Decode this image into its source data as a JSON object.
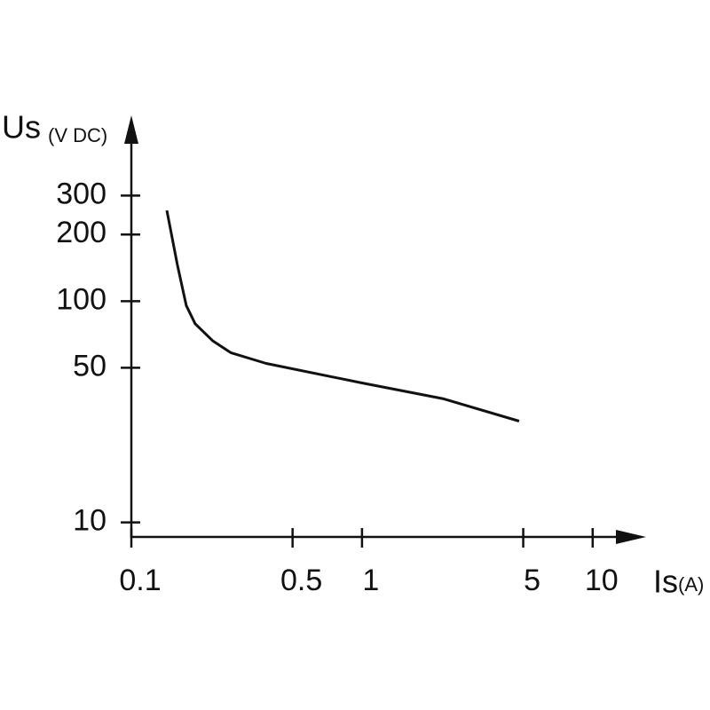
{
  "chart_data": {
    "type": "line",
    "y_label": "Us",
    "y_unit": "(V DC)",
    "x_label": "Is",
    "x_unit": "(A)",
    "x": [
      0.1425,
      0.1585,
      0.173,
      0.189,
      0.226,
      0.27,
      0.384,
      1,
      2.26,
      4.8
    ],
    "series": [
      {
        "name": "Us",
        "color": "#111111",
        "values": [
          257,
          145,
          95.5,
          79,
          66,
          58.5,
          52.3,
          42.7,
          36.2,
          28.7
        ]
      }
    ],
    "xscale": "log",
    "yscale": "log",
    "xlim": [
      0.1,
      16.6
    ],
    "ylim": [
      8.6,
      630
    ],
    "xticks": [
      0.1,
      0.5,
      1,
      5,
      10
    ],
    "yticks": [
      10,
      50,
      100,
      200,
      300
    ]
  }
}
